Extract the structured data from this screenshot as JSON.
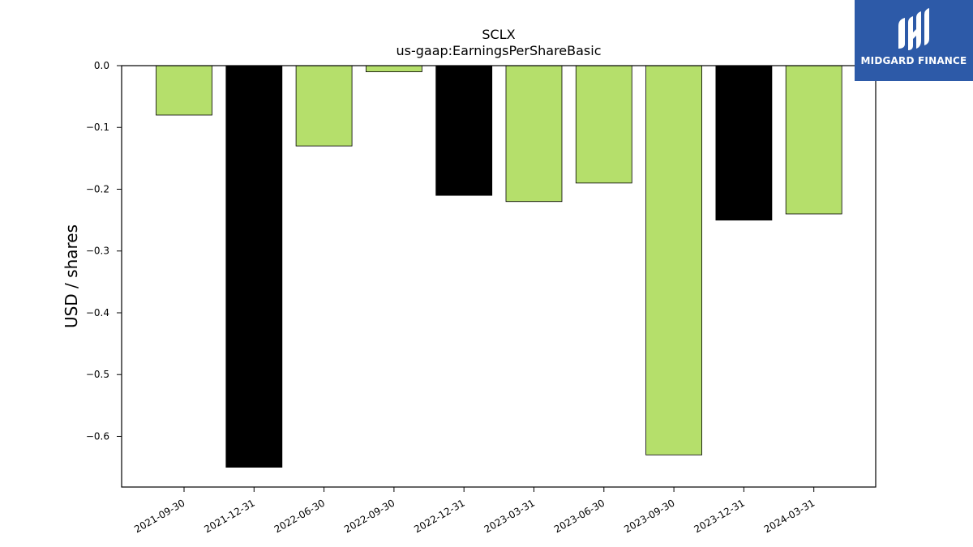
{
  "chart_data": {
    "type": "bar",
    "title": "SCLX",
    "subtitle": "us-gaap:EarningsPerShareBasic",
    "xlabel": "",
    "ylabel": "USD / shares",
    "categories": [
      "2021-09-30",
      "2021-12-31",
      "2022-06-30",
      "2022-09-30",
      "2022-12-31",
      "2023-03-31",
      "2023-06-30",
      "2023-09-30",
      "2023-12-31",
      "2024-03-31"
    ],
    "values": [
      -0.08,
      -0.65,
      -0.13,
      -0.01,
      -0.21,
      -0.22,
      -0.19,
      -0.63,
      -0.25,
      -0.24
    ],
    "bar_colors": [
      "#b5df6b",
      "#000000",
      "#b5df6b",
      "#b5df6b",
      "#000000",
      "#b5df6b",
      "#b5df6b",
      "#b5df6b",
      "#000000",
      "#b5df6b"
    ],
    "ylim": [
      -0.682,
      0.0
    ],
    "yticks": [
      0.0,
      -0.1,
      -0.2,
      -0.3,
      -0.4,
      -0.5,
      -0.6
    ],
    "ytick_labels": [
      "0.0",
      "−0.1",
      "−0.2",
      "−0.3",
      "−0.4",
      "−0.5",
      "−0.6"
    ],
    "grid": false,
    "legend": "none"
  },
  "logo": {
    "text": "MIDGARD FINANCE",
    "icon": "midgard-logo-icon",
    "background": "#2d5aa8"
  }
}
